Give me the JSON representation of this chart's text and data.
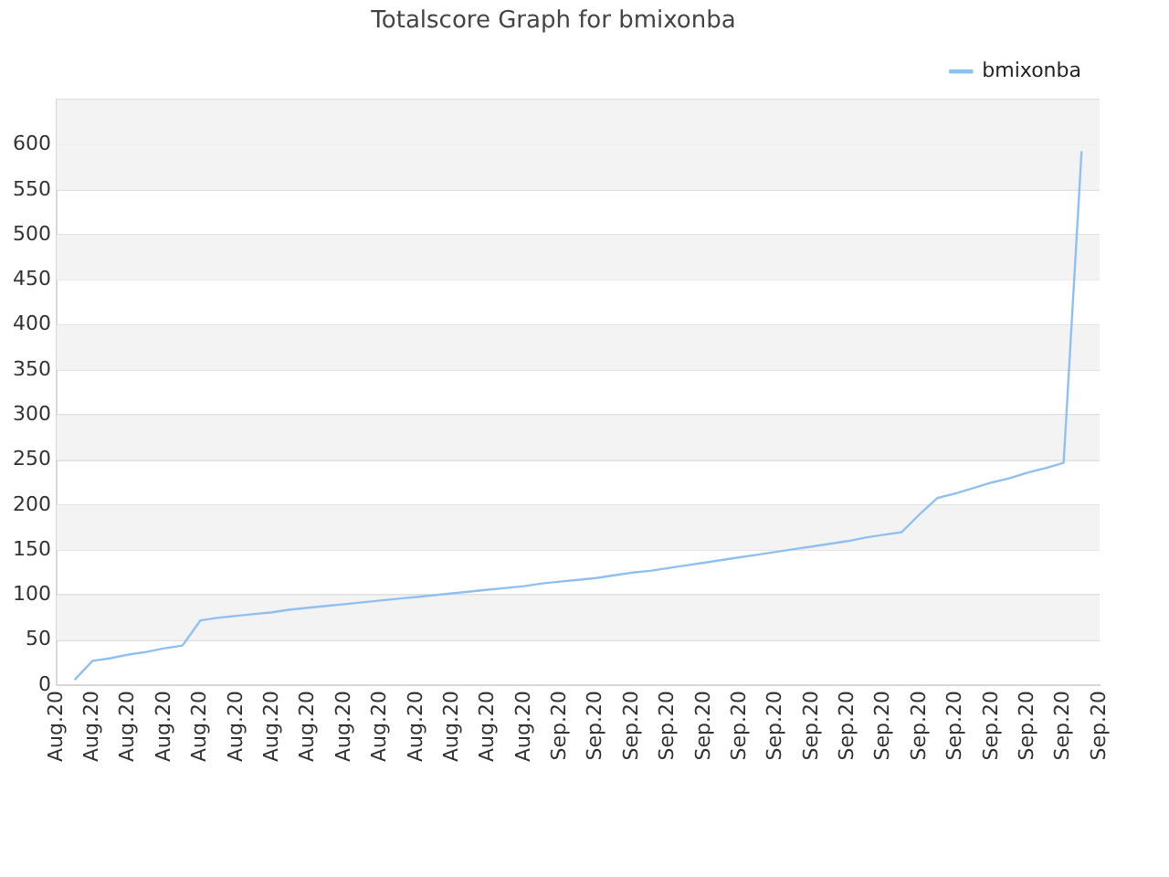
{
  "chart_data": {
    "type": "line",
    "title": "Totalscore Graph for bmixonba",
    "categories": [
      "Aug.20",
      null,
      "Aug.20",
      null,
      "Aug.20",
      null,
      "Aug.20",
      null,
      "Aug.20",
      null,
      "Aug.20",
      null,
      "Aug.20",
      null,
      "Aug.20",
      null,
      "Aug.20",
      null,
      "Aug.20",
      null,
      "Aug.20",
      null,
      "Aug.20",
      null,
      "Aug.20",
      null,
      "Aug.20",
      null,
      "Sep.20",
      null,
      "Sep.20",
      null,
      "Sep.20",
      null,
      "Sep.20",
      null,
      "Sep.20",
      null,
      "Sep.20",
      null,
      "Sep.20",
      null,
      "Sep.20",
      null,
      "Sep.20",
      null,
      "Sep.20",
      null,
      "Sep.20",
      null,
      "Sep.20",
      null,
      "Sep.20",
      null,
      "Sep.20",
      null,
      "Sep.20",
      null,
      "Sep.20"
    ],
    "series": [
      {
        "name": "bmixonba",
        "color": "#90c0f0",
        "values": [
          null,
          6,
          27,
          30,
          34,
          37,
          41,
          44,
          72,
          75,
          77,
          79,
          81,
          84,
          86,
          88,
          90,
          92,
          94,
          96,
          98,
          100,
          102,
          104,
          106,
          108,
          110,
          113,
          115,
          117,
          119,
          122,
          125,
          127,
          130,
          133,
          136,
          139,
          142,
          145,
          148,
          151,
          154,
          157,
          160,
          164,
          167,
          170,
          190,
          208,
          213,
          219,
          225,
          230,
          236,
          241,
          247,
          593,
          null
        ]
      }
    ],
    "ylim": [
      0,
      650
    ],
    "yticks": [
      0,
      50,
      100,
      150,
      200,
      250,
      300,
      350,
      400,
      450,
      500,
      550,
      600,
      {
        "value": 650,
        "label": null
      }
    ],
    "grid": "y",
    "legend": "top right",
    "marker": "none",
    "line_style": "solid"
  }
}
